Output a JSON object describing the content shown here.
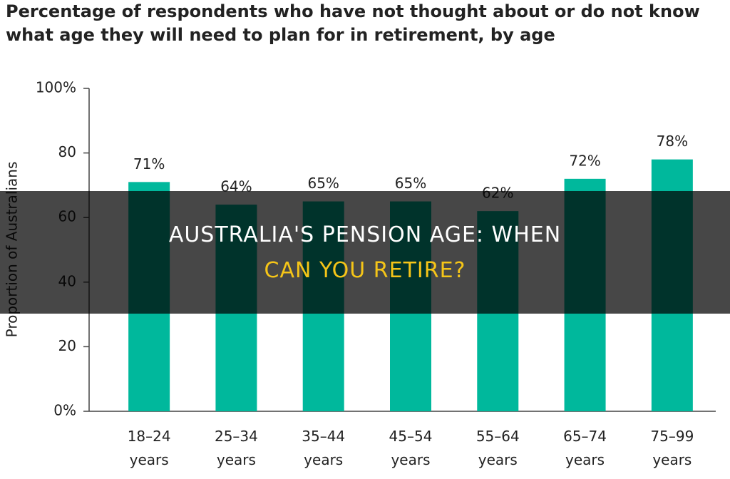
{
  "chart_data": {
    "type": "bar",
    "title": "Percentage of respondents who have not thought about or do not know what age they will need to plan for in retirement, by age",
    "ylabel": "Proportion of Australians",
    "categories": [
      "18–24 years",
      "25–34 years",
      "35–44 years",
      "45–54 years",
      "55–64 years",
      "65–74 years",
      "75–99 years"
    ],
    "values": [
      71,
      64,
      65,
      65,
      62,
      72,
      78
    ],
    "value_labels": [
      "71%",
      "64%",
      "65%",
      "65%",
      "62%",
      "72%",
      "78%"
    ],
    "color": "#00b89c",
    "ylim": [
      0,
      100
    ],
    "yticks": [
      {
        "value": 0,
        "label": "0%"
      },
      20,
      40,
      60,
      80,
      {
        "value": 100,
        "label": "100%"
      }
    ]
  },
  "overlay": {
    "headline_line1": "AUSTRALIA'S PENSION AGE: WHEN",
    "headline_line2": "CAN YOU RETIRE?"
  }
}
